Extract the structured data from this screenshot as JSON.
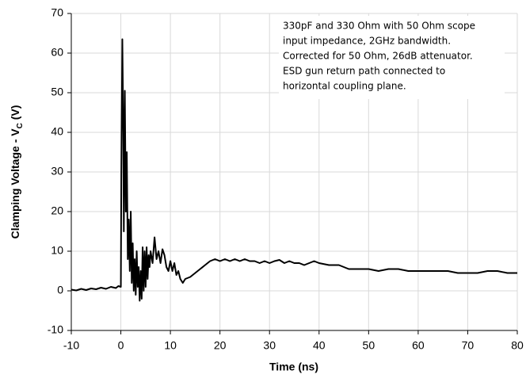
{
  "chart_data": {
    "type": "line",
    "xlabel": "Time (ns)",
    "ylabel": {
      "text": "Clamping Voltage - V",
      "subscript": "C",
      "suffix": " (V)"
    },
    "annotation": [
      "330pF and 330 Ohm with 50 Ohm scope",
      "input impedance, 2GHz bandwidth.",
      "Corrected for 50 Ohm, 26dB attenuator.",
      "ESD gun return path connected to",
      "horizontal coupling plane."
    ],
    "xlim": [
      -10,
      80
    ],
    "xticks": [
      -10,
      0,
      10,
      20,
      30,
      40,
      50,
      60,
      70,
      80
    ],
    "ylim": [
      -10,
      70
    ],
    "yticks": [
      -10,
      0,
      10,
      20,
      30,
      40,
      50,
      60,
      70
    ],
    "grid": true,
    "series": [
      {
        "color": "#000000",
        "x": [
          -10,
          -9,
          -8,
          -7,
          -6,
          -5,
          -4,
          -3,
          -2,
          -1,
          -0.5,
          0,
          0.1,
          0.3,
          0.5,
          0.6,
          0.8,
          1.0,
          1.2,
          1.4,
          1.6,
          1.8,
          2.0,
          2.2,
          2.4,
          2.6,
          2.8,
          3.0,
          3.2,
          3.4,
          3.6,
          3.8,
          4.0,
          4.2,
          4.4,
          4.6,
          4.8,
          5.0,
          5.2,
          5.4,
          5.6,
          5.8,
          6.0,
          6.4,
          6.8,
          7.2,
          7.6,
          8,
          8.4,
          8.8,
          9.2,
          9.6,
          10,
          10.4,
          10.8,
          11.2,
          11.6,
          12,
          12.5,
          13,
          14,
          15,
          16,
          17,
          18,
          19,
          20,
          21,
          22,
          23,
          24,
          25,
          26,
          27,
          28,
          29,
          30,
          31,
          32,
          33,
          34,
          35,
          36,
          37,
          38,
          39,
          40,
          42,
          44,
          46,
          48,
          50,
          52,
          54,
          56,
          58,
          60,
          62,
          64,
          66,
          68,
          70,
          72,
          74,
          76,
          78,
          80
        ],
        "values": [
          0.3,
          0.1,
          0.5,
          0.2,
          0.6,
          0.4,
          0.8,
          0.5,
          1.0,
          0.7,
          1.2,
          1.0,
          30,
          63.5,
          40,
          15,
          50.5,
          20,
          35,
          8,
          18,
          5,
          20,
          2,
          12,
          0,
          8,
          -1,
          10,
          1,
          6,
          -2.5,
          5,
          -2,
          11,
          0,
          10,
          1,
          11,
          3,
          9,
          6,
          10,
          7,
          13.5,
          8,
          10,
          7,
          10.5,
          9,
          6,
          5,
          7.5,
          5,
          7,
          4,
          5,
          3,
          2,
          3,
          3.5,
          4.5,
          5.5,
          6.5,
          7.5,
          8,
          7.5,
          8,
          7.5,
          8,
          7.5,
          8,
          7.5,
          7.5,
          7,
          7.5,
          7,
          7.5,
          7.8,
          7,
          7.5,
          7,
          7,
          6.5,
          7,
          7.5,
          7,
          6.5,
          6.5,
          5.5,
          5.5,
          5.5,
          5,
          5.5,
          5.5,
          5,
          5,
          5,
          5,
          5,
          4.5,
          4.5,
          4.5,
          5,
          5,
          4.5,
          4.5
        ]
      }
    ]
  }
}
